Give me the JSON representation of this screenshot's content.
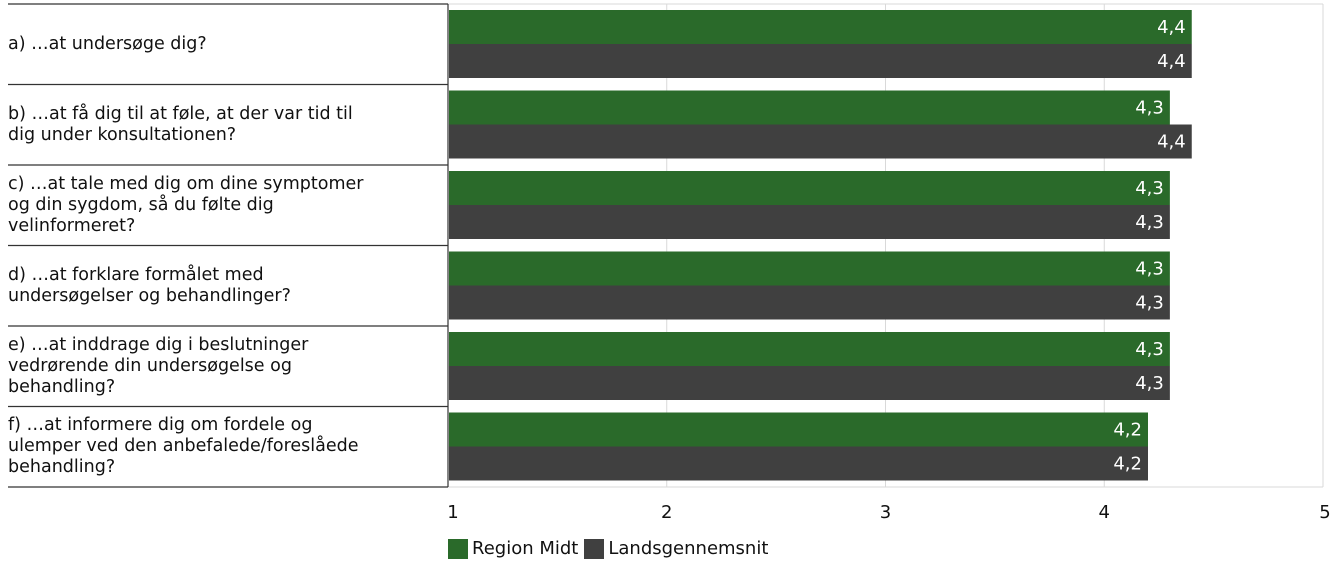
{
  "chart_data": {
    "type": "bar",
    "orientation": "horizontal",
    "categories": [
      "a) …at undersøge dig?",
      "b) …at få dig til at føle, at der var tid til\ndig under konsultationen?",
      "c) …at tale med dig om dine symptomer\nog din sygdom, så du følte dig\nvelinformeret?",
      "d) …at forklare formålet med\nundersøgelser og behandlinger?",
      "e) …at inddrage dig i beslutninger\nvedrørende din undersøgelse og\nbehandling?",
      "f) …at informere dig om fordele og\nulemper ved den anbefalede/foreslåede\nbehandling?"
    ],
    "series": [
      {
        "name": "Region Midt",
        "color": "#2a6a2a",
        "values": [
          4.4,
          4.3,
          4.3,
          4.3,
          4.3,
          4.2
        ],
        "labels": [
          "4,4",
          "4,3",
          "4,3",
          "4,3",
          "4,3",
          "4,2"
        ]
      },
      {
        "name": "Landsgennemsnit",
        "color": "#404040",
        "values": [
          4.4,
          4.4,
          4.3,
          4.3,
          4.3,
          4.2
        ],
        "labels": [
          "4,4",
          "4,4",
          "4,3",
          "4,3",
          "4,3",
          "4,2"
        ]
      }
    ],
    "xlim": [
      1,
      5
    ],
    "ticks": [
      "1",
      "2",
      "3",
      "4",
      "5"
    ],
    "grid": true,
    "legend_position": "bottom",
    "title": "",
    "xlabel": "",
    "ylabel": ""
  }
}
